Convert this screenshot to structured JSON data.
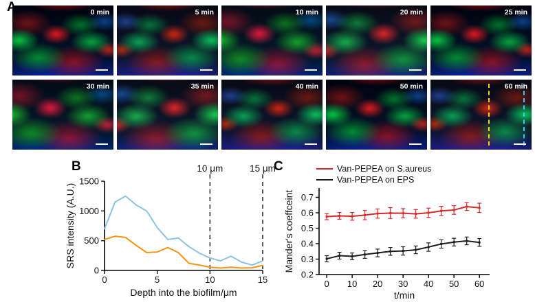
{
  "figure": {
    "panel_a_label": "A",
    "panel_b_label": "B",
    "panel_c_label": "C"
  },
  "panel_a": {
    "tiles": [
      {
        "label": "0 min"
      },
      {
        "label": "5 min"
      },
      {
        "label": "10 min"
      },
      {
        "label": "20 min"
      },
      {
        "label": "25 min"
      },
      {
        "label": "30 min"
      },
      {
        "label": "35 min"
      },
      {
        "label": "40 min"
      },
      {
        "label": "50 min"
      },
      {
        "label": "60 min"
      }
    ],
    "scale_bar_color": "#ffffff",
    "depth_marker_colors": {
      "yellow": "#ffd400",
      "cyan": "#35c8f5"
    }
  },
  "chart_data": [
    {
      "type": "line",
      "panel": "B",
      "title": "",
      "xlabel": "Depth into the biofilm/μm",
      "ylabel": "SRS intensity (A.U.)",
      "xlim": [
        0,
        15
      ],
      "ylim": [
        0,
        1500
      ],
      "xticks": [
        0,
        5,
        10,
        15
      ],
      "yticks": [
        0,
        500,
        1000,
        1500
      ],
      "x": [
        0,
        1,
        2,
        3,
        4,
        5,
        6,
        7,
        8,
        9,
        10,
        11,
        12,
        13,
        14,
        15
      ],
      "series": [
        {
          "name": "blue-trace",
          "color": "#8cc2e2",
          "values": [
            700,
            1150,
            1250,
            1100,
            1000,
            720,
            520,
            545,
            400,
            290,
            210,
            160,
            240,
            140,
            90,
            160
          ]
        },
        {
          "name": "orange-trace",
          "color": "#f5930f",
          "values": [
            520,
            575,
            555,
            420,
            300,
            310,
            385,
            300,
            120,
            90,
            55,
            40,
            55,
            40,
            45,
            85
          ]
        }
      ],
      "annotations": [
        {
          "label": "10 μm",
          "x": 10
        },
        {
          "label": "15 μm",
          "x": 15
        }
      ],
      "grid": false
    },
    {
      "type": "line",
      "panel": "C",
      "title": "",
      "xlabel": "t/min",
      "ylabel": "Mander's coeffceint",
      "xlim": [
        -3,
        64
      ],
      "ylim": [
        0.2,
        0.76
      ],
      "xticks": [
        0,
        10,
        20,
        30,
        40,
        50,
        60
      ],
      "yticks": [
        0.2,
        0.3,
        0.4,
        0.5,
        0.6,
        0.7
      ],
      "x": [
        0,
        5,
        10,
        15,
        20,
        25,
        30,
        35,
        40,
        45,
        50,
        55,
        60
      ],
      "series": [
        {
          "name": "Van-PEPEA on S.aureus",
          "color": "#d42a2a",
          "values": [
            0.575,
            0.58,
            0.577,
            0.585,
            0.595,
            0.598,
            0.597,
            0.593,
            0.6,
            0.612,
            0.618,
            0.64,
            0.632
          ],
          "errors": [
            0.02,
            0.022,
            0.025,
            0.03,
            0.03,
            0.035,
            0.03,
            0.028,
            0.03,
            0.03,
            0.028,
            0.025,
            0.03
          ]
        },
        {
          "name": "Van-PEPEA on EPS",
          "color": "#1c1c1c",
          "values": [
            0.302,
            0.322,
            0.318,
            0.33,
            0.34,
            0.35,
            0.353,
            0.36,
            0.378,
            0.398,
            0.41,
            0.418,
            0.408
          ],
          "errors": [
            0.02,
            0.022,
            0.022,
            0.025,
            0.025,
            0.025,
            0.027,
            0.025,
            0.027,
            0.027,
            0.025,
            0.025,
            0.025
          ]
        }
      ],
      "legend_position": "top",
      "grid": false
    }
  ]
}
